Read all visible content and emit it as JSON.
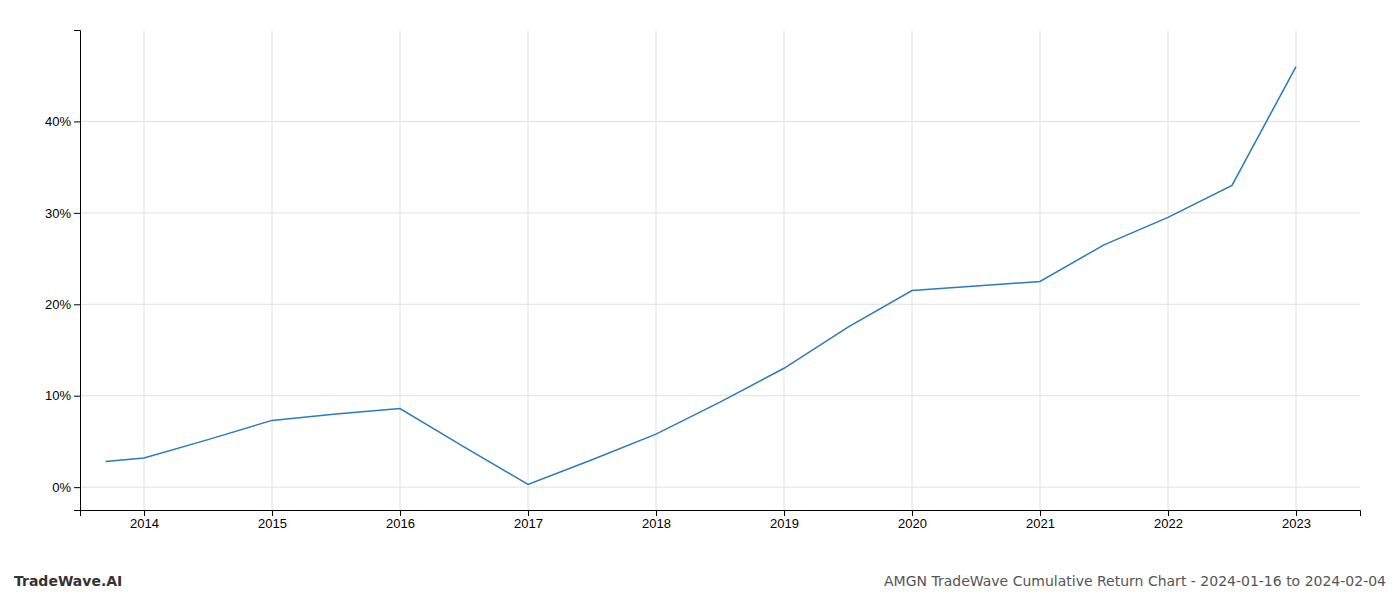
{
  "chart_data": {
    "type": "line",
    "title": "AMGN TradeWave Cumulative Return Chart - 2024-01-16 to 2024-02-04",
    "annotations": [
      "TradeWave.AI"
    ],
    "x": [
      2013.7,
      2014.0,
      2014.5,
      2015.0,
      2015.5,
      2016.0,
      2016.5,
      2017.0,
      2017.5,
      2018.0,
      2018.5,
      2019.0,
      2019.5,
      2020.0,
      2020.5,
      2021.0,
      2021.5,
      2022.0,
      2022.5,
      2023.0
    ],
    "values": [
      0.028,
      0.032,
      0.052,
      0.073,
      0.08,
      0.086,
      0.044,
      0.003,
      0.03,
      0.058,
      0.093,
      0.13,
      0.175,
      0.215,
      0.22,
      0.225,
      0.265,
      0.295,
      0.33,
      0.46
    ],
    "color": "#2b7cb8",
    "xlim": [
      2013.5,
      2023.5
    ],
    "xticks": [
      2014,
      2015,
      2016,
      2017,
      2018,
      2019,
      2020,
      2021,
      2022,
      2023
    ],
    "ylim": [
      -0.025,
      0.5
    ],
    "yticks": [
      {
        "value": 0.0,
        "label": "0%"
      },
      {
        "value": 0.1,
        "label": "10%"
      },
      {
        "value": 0.2,
        "label": "20%"
      },
      {
        "value": 0.3,
        "label": "30%"
      },
      {
        "value": 0.4,
        "label": "40%"
      }
    ],
    "grid": true
  }
}
